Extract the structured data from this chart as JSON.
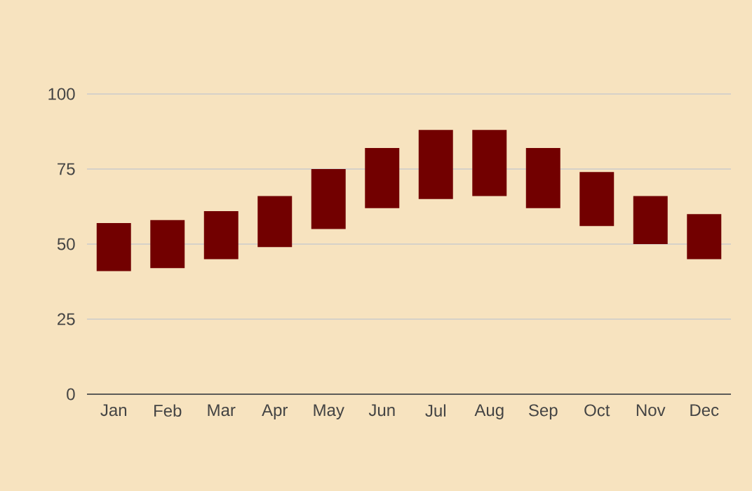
{
  "chart_data": {
    "type": "bar",
    "categories": [
      "Jan",
      "Feb",
      "Mar",
      "Apr",
      "May",
      "Jun",
      "Jul",
      "Aug",
      "Sep",
      "Oct",
      "Nov",
      "Dec"
    ],
    "base": [
      41,
      42,
      45,
      49,
      55,
      62,
      65,
      66,
      62,
      56,
      50,
      45
    ],
    "values": [
      16,
      16,
      16,
      17,
      20,
      20,
      23,
      22,
      20,
      18,
      16,
      15
    ],
    "color": "#720000",
    "ylim": [
      0,
      100
    ],
    "yticks": [
      0,
      25,
      50,
      75,
      100
    ],
    "grid": "y"
  }
}
